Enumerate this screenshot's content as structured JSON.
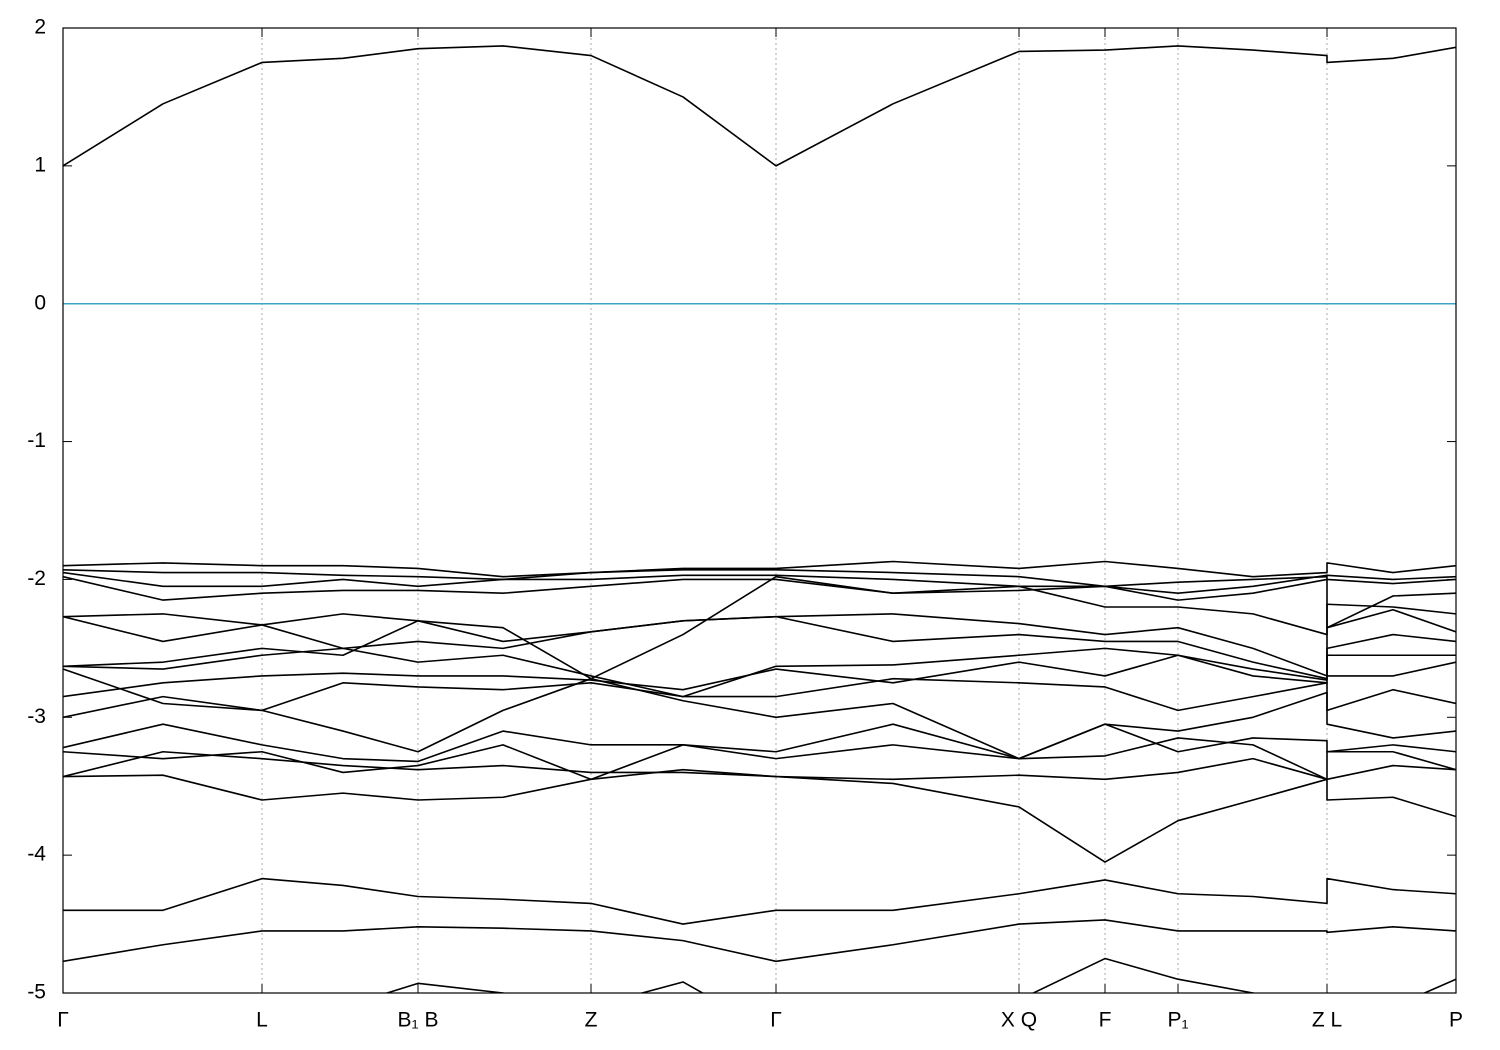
{
  "chart_data": {
    "type": "line",
    "x": [
      0,
      1,
      1.99,
      2.8,
      3.55,
      4.4,
      5.28,
      6.2,
      7.13,
      8.3,
      9.56,
      10.42,
      11.15,
      11.9,
      12.64,
      12.64,
      13.3,
      13.93
    ],
    "xlim": [
      0,
      13.93
    ],
    "xticks": [
      {
        "value": 0,
        "label": "Γ"
      },
      {
        "value": 1.99,
        "label": "L"
      },
      {
        "value": 3.55,
        "label": "B₁ B"
      },
      {
        "value": 5.28,
        "label": "Z"
      },
      {
        "value": 7.13,
        "label": "Γ"
      },
      {
        "value": 9.56,
        "label": "X Q"
      },
      {
        "value": 10.42,
        "label": "F"
      },
      {
        "value": 11.15,
        "label": "P₁"
      },
      {
        "value": 12.64,
        "label": "Z L"
      },
      {
        "value": 13.93,
        "label": "P"
      }
    ],
    "ylim": [
      -5,
      2
    ],
    "yticks": [
      -5,
      -4,
      -3,
      -2,
      -1,
      0,
      1,
      2
    ],
    "grid": "x",
    "color": "#000000",
    "reference_line": {
      "y": 0,
      "color": "#3fa4c4"
    },
    "series": [
      {
        "values": [
          1.0,
          1.45,
          1.75,
          1.78,
          1.85,
          1.87,
          1.8,
          1.5,
          1.0,
          1.45,
          1.83,
          1.84,
          1.87,
          1.84,
          1.8,
          1.75,
          1.78,
          1.86
        ]
      },
      {
        "values": [
          -1.9,
          -1.88,
          -1.9,
          -1.9,
          -1.92,
          -1.98,
          -1.95,
          -1.92,
          -1.92,
          -1.87,
          -1.92,
          -1.87,
          -1.92,
          -1.98,
          -1.95,
          -1.88,
          -1.95,
          -1.9
        ]
      },
      {
        "values": [
          -1.93,
          -1.95,
          -1.95,
          -1.97,
          -1.98,
          -2.0,
          -1.95,
          -1.93,
          -1.93,
          -1.95,
          -1.98,
          -2.05,
          -2.1,
          -2.05,
          -1.97,
          -1.97,
          -2.0,
          -1.98
        ]
      },
      {
        "values": [
          -1.95,
          -2.05,
          -2.05,
          -2.0,
          -2.05,
          -2.0,
          -2.0,
          -1.97,
          -1.97,
          -2.0,
          -2.05,
          -2.05,
          -2.02,
          -2.0,
          -1.98,
          -2.0,
          -2.03,
          -2.0
        ]
      },
      {
        "values": [
          -1.98,
          -2.15,
          -2.1,
          -2.08,
          -2.08,
          -2.1,
          -2.05,
          -2.0,
          -2.0,
          -2.1,
          -2.08,
          -2.05,
          -2.15,
          -2.1,
          -2.0,
          -2.35,
          -2.12,
          -2.1
        ]
      },
      {
        "values": [
          -2.27,
          -2.25,
          -2.33,
          -2.25,
          -2.3,
          -2.35,
          -2.72,
          -2.4,
          -1.98,
          -2.1,
          -2.05,
          -2.2,
          -2.2,
          -2.25,
          -2.4,
          -2.18,
          -2.2,
          -2.25
        ]
      },
      {
        "values": [
          -2.27,
          -2.45,
          -2.33,
          -2.5,
          -2.45,
          -2.5,
          -2.38,
          -2.3,
          -2.27,
          -2.25,
          -2.32,
          -2.4,
          -2.35,
          -2.5,
          -2.7,
          -2.35,
          -2.22,
          -2.38
        ]
      },
      {
        "values": [
          -2.63,
          -2.6,
          -2.5,
          -2.55,
          -2.3,
          -2.45,
          -2.38,
          -2.3,
          -2.27,
          -2.45,
          -2.4,
          -2.45,
          -2.45,
          -2.6,
          -2.72,
          -2.5,
          -2.4,
          -2.45
        ]
      },
      {
        "values": [
          -2.63,
          -2.65,
          -2.55,
          -2.5,
          -2.6,
          -2.55,
          -2.7,
          -2.85,
          -2.63,
          -2.62,
          -2.55,
          -2.5,
          -2.55,
          -2.65,
          -2.73,
          -2.55,
          -2.55,
          -2.55
        ]
      },
      {
        "values": [
          -2.85,
          -2.75,
          -2.7,
          -2.68,
          -2.7,
          -2.7,
          -2.73,
          -2.8,
          -2.65,
          -2.75,
          -2.6,
          -2.7,
          -2.55,
          -2.7,
          -2.75,
          -2.7,
          -2.7,
          -2.6
        ]
      },
      {
        "values": [
          -2.65,
          -2.9,
          -2.95,
          -2.75,
          -2.78,
          -2.8,
          -2.75,
          -2.85,
          -2.85,
          -2.72,
          -2.75,
          -2.78,
          -2.95,
          -2.85,
          -2.75,
          -2.95,
          -2.8,
          -2.9
        ]
      },
      {
        "values": [
          -3.0,
          -2.85,
          -2.95,
          -3.1,
          -3.25,
          -2.95,
          -2.72,
          -2.88,
          -3.0,
          -2.9,
          -3.3,
          -3.05,
          -3.1,
          -3.0,
          -2.82,
          -3.05,
          -3.15,
          -3.1
        ]
      },
      {
        "values": [
          -3.22,
          -3.05,
          -3.2,
          -3.3,
          -3.32,
          -3.1,
          -3.2,
          -3.2,
          -3.25,
          -3.05,
          -3.3,
          -3.05,
          -3.25,
          -3.15,
          -3.17,
          -3.25,
          -3.2,
          -3.25
        ]
      },
      {
        "values": [
          -3.25,
          -3.3,
          -3.25,
          -3.4,
          -3.35,
          -3.2,
          -3.45,
          -3.2,
          -3.3,
          -3.2,
          -3.3,
          -3.28,
          -3.15,
          -3.2,
          -3.45,
          -3.25,
          -3.25,
          -3.38
        ]
      },
      {
        "values": [
          -3.43,
          -3.42,
          -3.6,
          -3.55,
          -3.6,
          -3.58,
          -3.45,
          -3.38,
          -3.43,
          -3.45,
          -3.42,
          -3.45,
          -3.4,
          -3.3,
          -3.45,
          -3.6,
          -3.58,
          -3.72
        ]
      },
      {
        "values": [
          -3.43,
          -3.25,
          -3.3,
          -3.35,
          -3.38,
          -3.35,
          -3.4,
          -3.4,
          -3.43,
          -3.48,
          -3.65,
          -4.05,
          -3.75,
          -3.6,
          -3.45,
          -3.45,
          -3.35,
          -3.38
        ]
      },
      {
        "values": [
          -4.4,
          -4.4,
          -4.17,
          -4.22,
          -4.3,
          -4.32,
          -4.35,
          -4.5,
          -4.4,
          -4.4,
          -4.28,
          -4.18,
          -4.28,
          -4.3,
          -4.35,
          -4.17,
          -4.25,
          -4.28
        ]
      },
      {
        "values": [
          -4.77,
          -4.65,
          -4.55,
          -4.55,
          -4.52,
          -4.53,
          -4.55,
          -4.62,
          -4.77,
          -4.65,
          -4.5,
          -4.47,
          -4.55,
          -4.55,
          -4.55,
          -4.56,
          -4.52,
          -4.55
        ]
      },
      {
        "values": [
          -5.6,
          -5.5,
          -5.3,
          -5.1,
          -4.93,
          -5.0,
          -5.1,
          -4.92,
          -5.3,
          -5.4,
          -5.05,
          -4.75,
          -4.9,
          -5.0,
          -5.1,
          -5.2,
          -5.1,
          -4.9
        ]
      }
    ]
  }
}
